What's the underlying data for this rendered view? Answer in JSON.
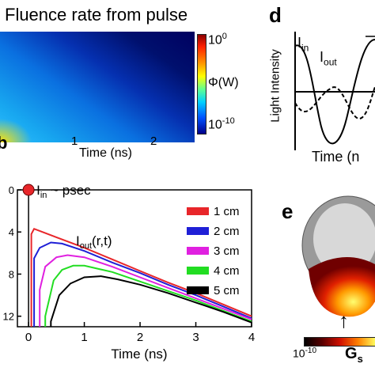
{
  "panel_c": {
    "title": "Fluence rate from pulse",
    "cbar_top": "10",
    "cbar_top_exp": "0",
    "cbar_bottom": "10",
    "cbar_bottom_exp": "-10",
    "cbar_label": "Φ(W)",
    "xlabel": "Time (ns)",
    "xticks": [
      "1",
      "2"
    ],
    "panel_letter_partial": "b"
  },
  "panel_d": {
    "letter": "d",
    "ylabel": "Light Intensity",
    "xlabel": "Time (n",
    "iin_main": "I",
    "iin_sub": "in",
    "iout_main": "I",
    "iout_sub": "out"
  },
  "panel_e": {
    "letter": "e",
    "cbar_left": "10",
    "cbar_left_exp": "-10",
    "cbar_label_main": "G",
    "cbar_label_sub": "s"
  },
  "chart_data": {
    "type": "line",
    "title": "",
    "xlabel": "Time (ns)",
    "ylabel": "",
    "xlim": [
      -0.2,
      4
    ],
    "ylim": [
      -13,
      0
    ],
    "xticks": [
      "0",
      "1",
      "2",
      "3",
      "4"
    ],
    "yticks": [
      "0",
      "4",
      "8",
      "12"
    ],
    "annotations": {
      "iin_main": "I",
      "iin_sub": "in",
      "iin_suffix": " ~ psec",
      "iout_main": "I",
      "iout_sub": "out",
      "iout_suffix": "(r,t)"
    },
    "legend_position": "top-right",
    "series": [
      {
        "name": "1 cm",
        "color": "#e8262a",
        "x": [
          0.05,
          0.1,
          0.3,
          0.5,
          1,
          1.5,
          2,
          2.5,
          3,
          3.5,
          4
        ],
        "y": [
          -4.2,
          -3.7,
          -4.1,
          -4.5,
          -5.5,
          -6.6,
          -7.7,
          -8.8,
          -9.8,
          -10.9,
          -12.0
        ]
      },
      {
        "name": "2 cm",
        "color": "#1f1fd6",
        "x": [
          0.1,
          0.2,
          0.4,
          0.6,
          1,
          1.5,
          2,
          2.5,
          3,
          3.5,
          4
        ],
        "y": [
          -6.5,
          -5.5,
          -5.0,
          -5.1,
          -5.8,
          -6.9,
          -7.9,
          -9.0,
          -10.0,
          -11.1,
          -12.2
        ]
      },
      {
        "name": "3 cm",
        "color": "#e020e0",
        "x": [
          0.2,
          0.3,
          0.5,
          0.7,
          1,
          1.5,
          2,
          2.5,
          3,
          3.5,
          4
        ],
        "y": [
          -9.5,
          -7.3,
          -6.4,
          -6.2,
          -6.4,
          -7.3,
          -8.3,
          -9.3,
          -10.3,
          -11.3,
          -12.3
        ]
      },
      {
        "name": "4 cm",
        "color": "#22dd22",
        "x": [
          0.3,
          0.45,
          0.6,
          0.8,
          1,
          1.5,
          2,
          2.5,
          3,
          3.5,
          4
        ],
        "y": [
          -12.0,
          -8.6,
          -7.6,
          -7.2,
          -7.2,
          -7.8,
          -8.7,
          -9.6,
          -10.5,
          -11.5,
          -12.5
        ]
      },
      {
        "name": "5 cm",
        "color": "#000000",
        "x": [
          0.4,
          0.55,
          0.75,
          1,
          1.3,
          1.6,
          2,
          2.5,
          3,
          3.5,
          4
        ],
        "y": [
          -12.5,
          -10.0,
          -8.9,
          -8.3,
          -8.2,
          -8.5,
          -9.0,
          -9.8,
          -10.7,
          -11.6,
          -12.6
        ]
      }
    ]
  }
}
